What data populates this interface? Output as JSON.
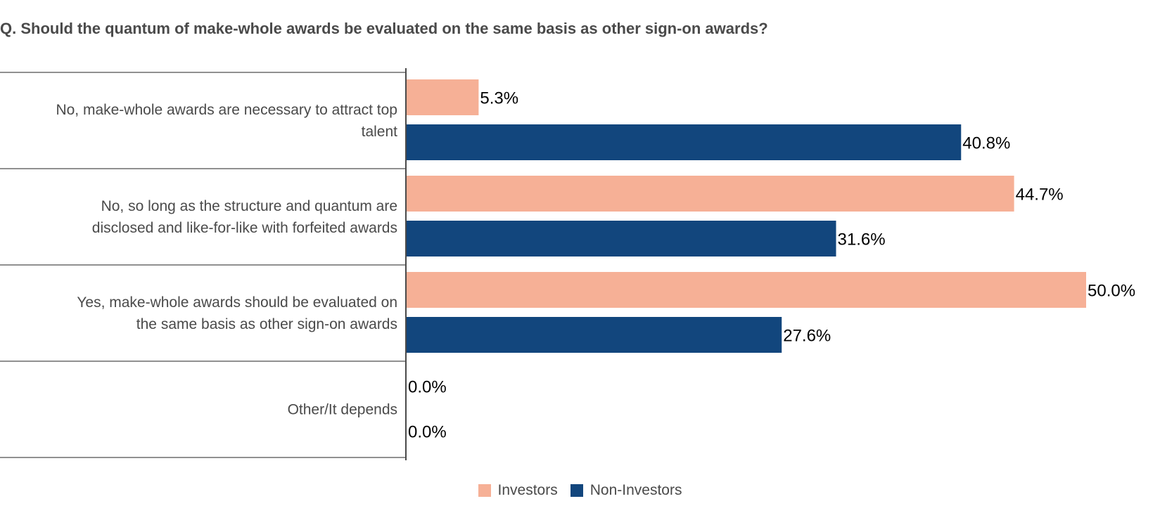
{
  "chart_data": {
    "type": "bar",
    "orientation": "horizontal",
    "title": "Q. Should the quantum of make-whole awards be evaluated on the same basis as other sign-on awards?",
    "categories": [
      [
        "No, make-whole awards are necessary to attract top",
        "talent"
      ],
      [
        "No, so long as the structure and quantum are",
        "disclosed and like-for-like with forfeited awards"
      ],
      [
        "Yes, make-whole awards should be evaluated on",
        "the same basis as other sign-on awards"
      ],
      [
        "Other/It depends"
      ]
    ],
    "series": [
      {
        "name": "Investors",
        "color": "#f6b096",
        "values": [
          5.3,
          44.7,
          50.0,
          0.0
        ],
        "labels": [
          "5.3%",
          "44.7%",
          "50.0%",
          "0.0%"
        ]
      },
      {
        "name": "Non-Investors",
        "color": "#12467d",
        "values": [
          40.8,
          31.6,
          27.6,
          0.0
        ],
        "labels": [
          "40.8%",
          "31.6%",
          "27.6%",
          "0.0%"
        ]
      }
    ],
    "xlim": [
      0,
      50
    ],
    "grid": false,
    "legend_position": "bottom-center"
  }
}
